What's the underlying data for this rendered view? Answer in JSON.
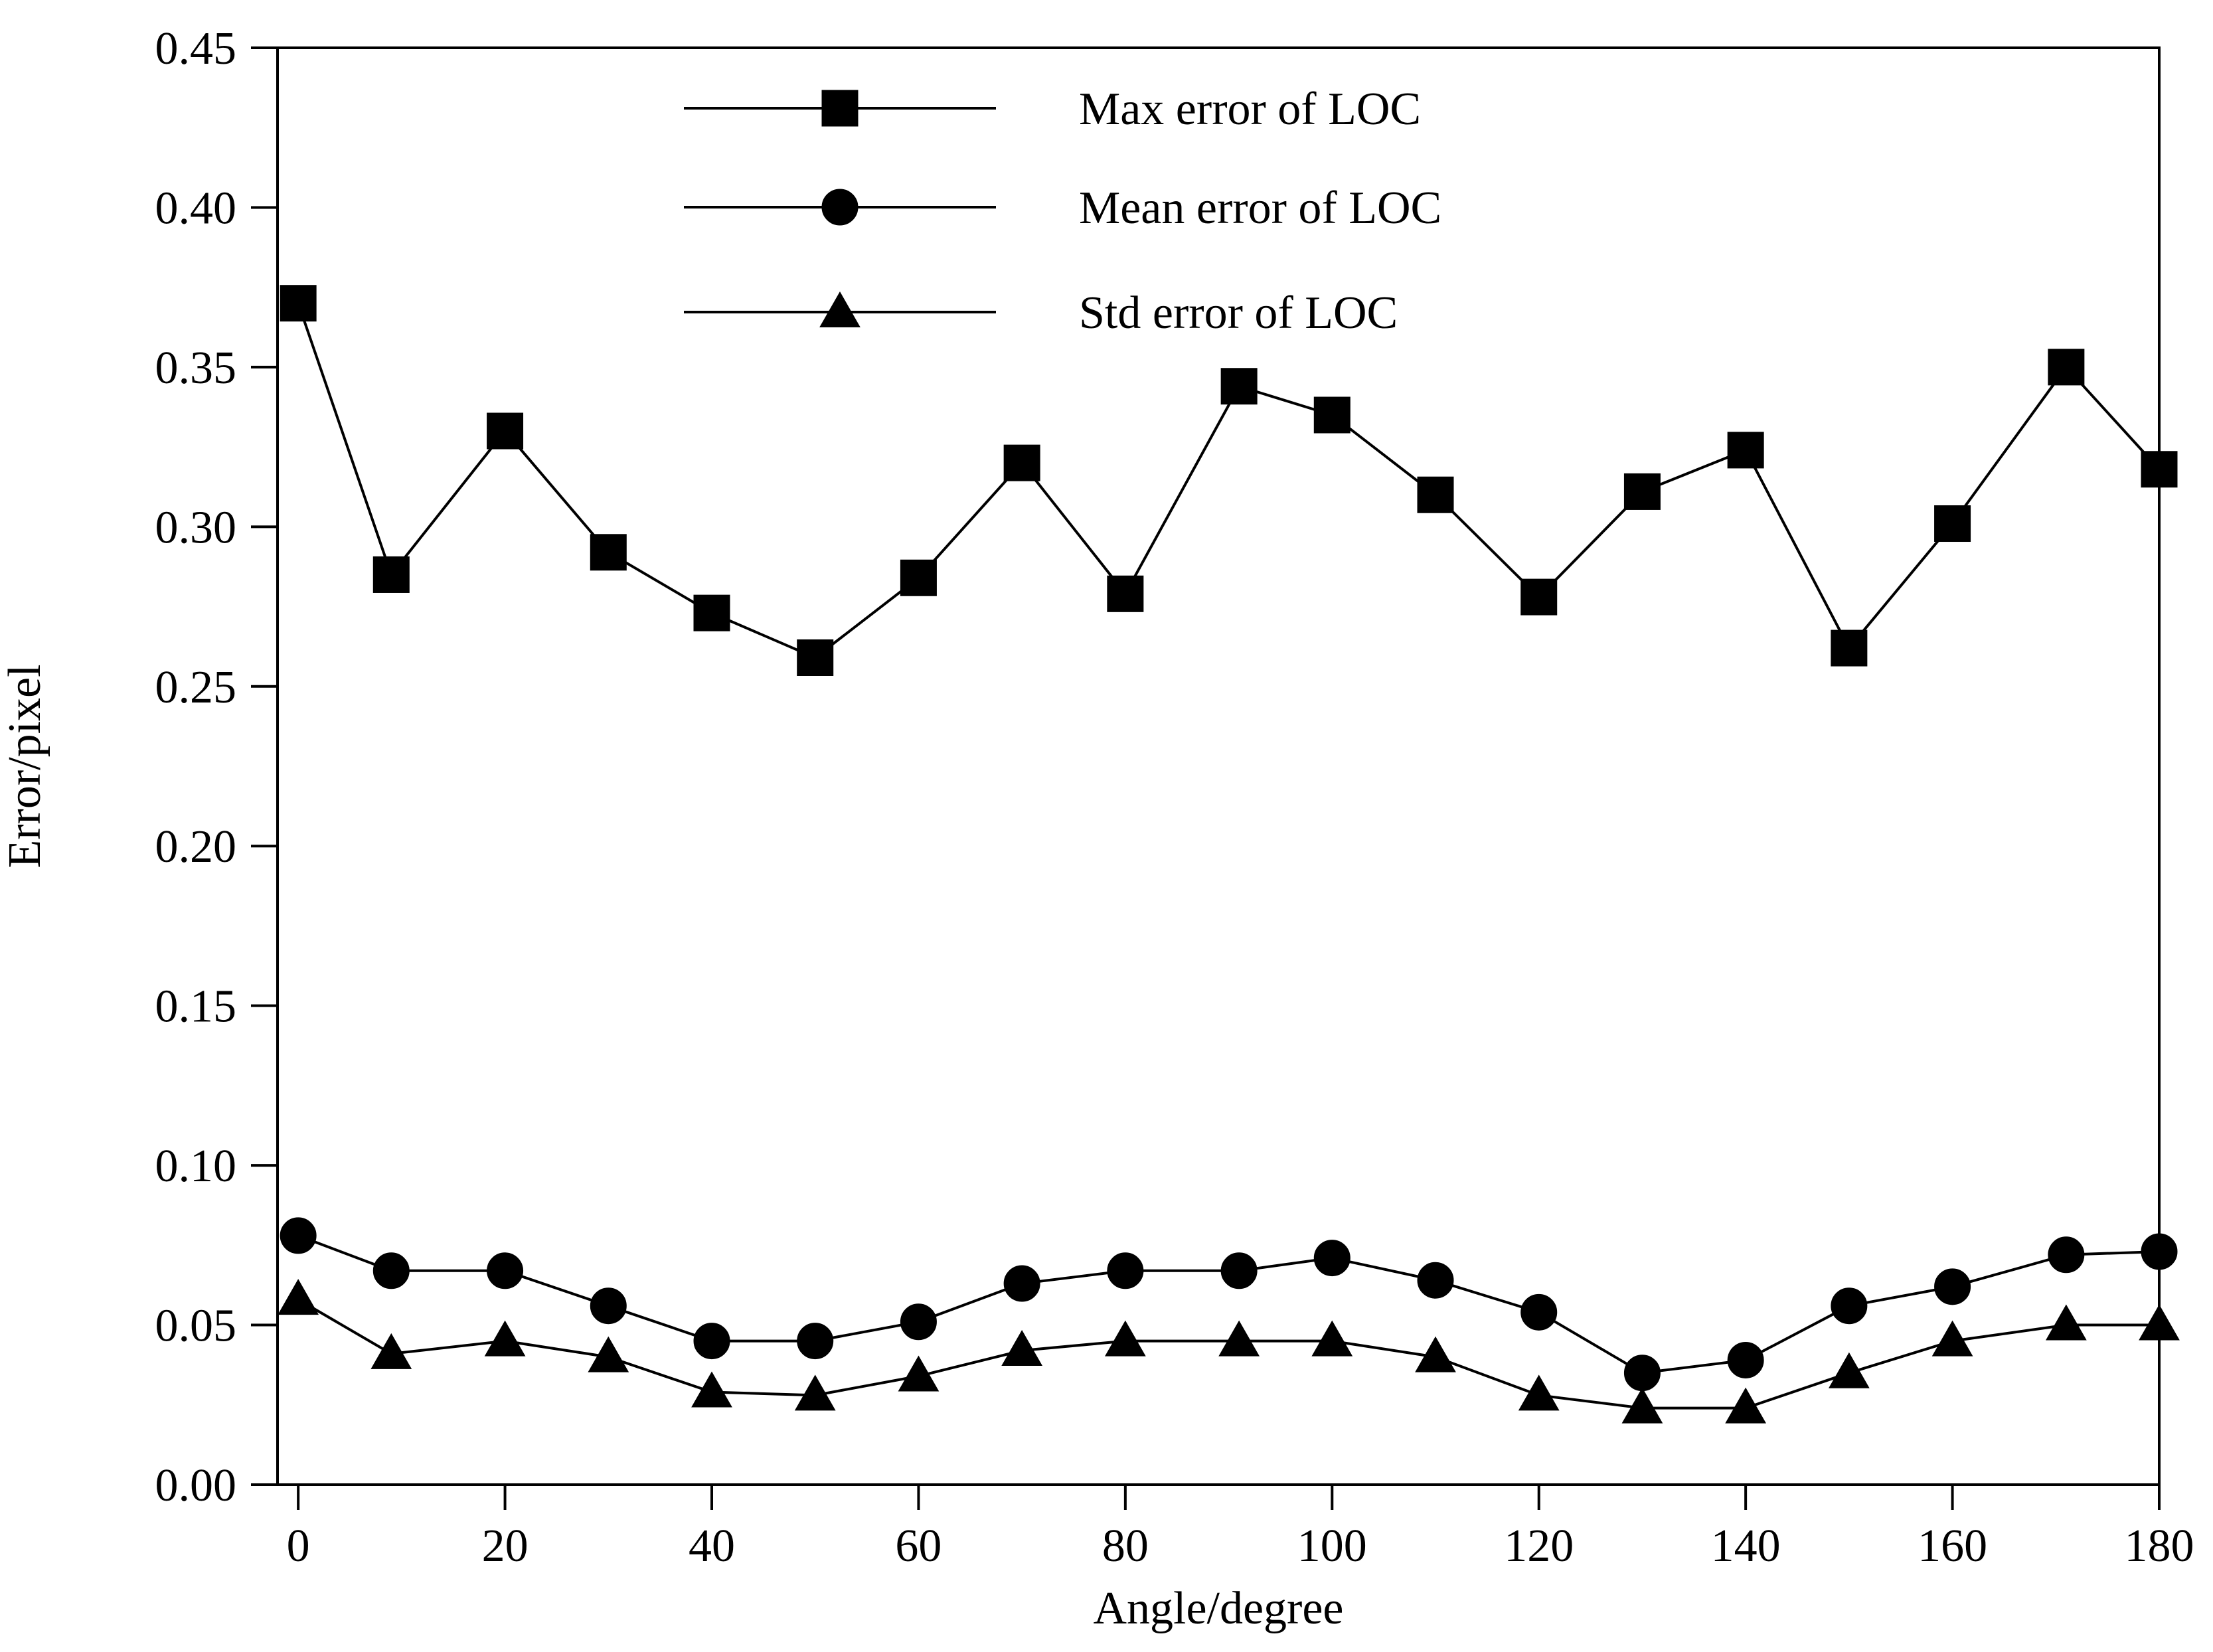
{
  "chart_data": {
    "type": "line",
    "title": "",
    "xlabel": "Angle/degree",
    "ylabel": "Error/pixel",
    "xlim": [
      -2,
      180
    ],
    "ylim": [
      0,
      0.45
    ],
    "x_ticks": [
      "0",
      "20",
      "40",
      "60",
      "80",
      "100",
      "120",
      "140",
      "160",
      "180"
    ],
    "y_ticks": [
      "0.00",
      "0.05",
      "0.10",
      "0.15",
      "0.20",
      "0.25",
      "0.30",
      "0.35",
      "0.40",
      "0.45"
    ],
    "legend_position": "top-center",
    "grid": false,
    "x": [
      0,
      9,
      20,
      30,
      40,
      50,
      60,
      70,
      80,
      91,
      100,
      110,
      120,
      130,
      140,
      150,
      160,
      171,
      180
    ],
    "series": [
      {
        "name": "Max error of LOC",
        "marker": "square",
        "values": [
          0.37,
          0.285,
          0.33,
          0.292,
          0.273,
          0.259,
          0.284,
          0.32,
          0.279,
          0.344,
          0.335,
          0.31,
          0.278,
          0.311,
          0.324,
          0.262,
          0.301,
          0.35,
          0.318
        ]
      },
      {
        "name": "Mean error of LOC",
        "marker": "circle",
        "values": [
          0.078,
          0.067,
          0.067,
          0.056,
          0.045,
          0.045,
          0.051,
          0.063,
          0.067,
          0.067,
          0.071,
          0.064,
          0.054,
          0.035,
          0.039,
          0.056,
          0.062,
          0.072,
          0.073
        ]
      },
      {
        "name": "Std error of LOC",
        "marker": "triangle",
        "values": [
          0.058,
          0.041,
          0.045,
          0.04,
          0.029,
          0.028,
          0.034,
          0.042,
          0.045,
          0.045,
          0.045,
          0.04,
          0.028,
          0.024,
          0.024,
          0.035,
          0.045,
          0.05,
          0.05
        ]
      }
    ]
  }
}
